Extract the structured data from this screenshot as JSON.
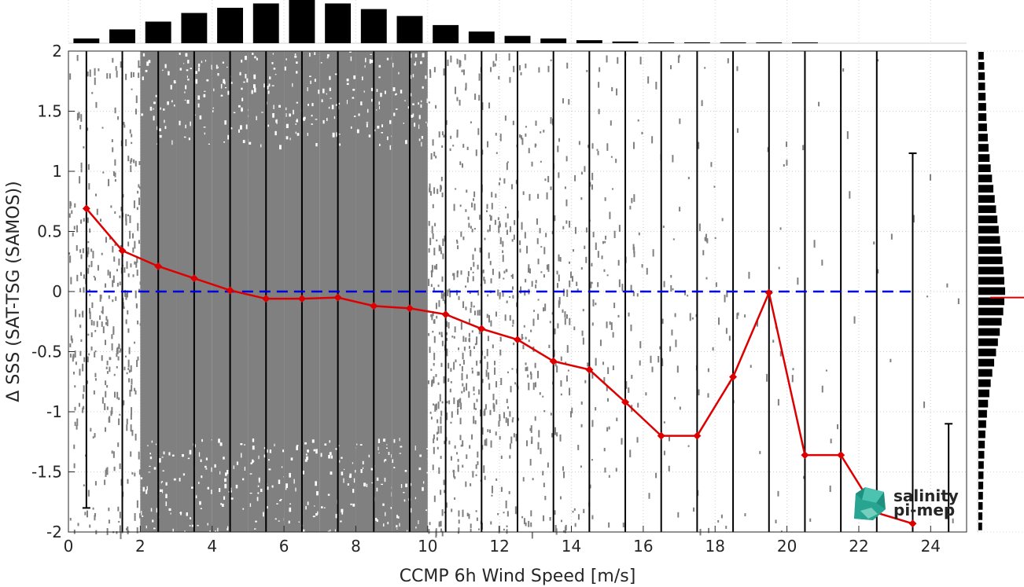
{
  "chart_data": {
    "type": "scatter",
    "xlabel": "CCMP 6h Wind Speed [m/s]",
    "ylabel": "Δ SSS (SAT-TSG (SAMOS))",
    "xlim": [
      0,
      25
    ],
    "ylim": [
      -2,
      2
    ],
    "x_ticks": [
      0,
      2,
      4,
      6,
      8,
      10,
      12,
      14,
      16,
      18,
      20,
      22,
      24
    ],
    "y_ticks": [
      2,
      1.5,
      1,
      0.5,
      0,
      -0.5,
      -1,
      -1.5,
      -2
    ],
    "grid": true,
    "zero_line": {
      "y": 0,
      "color": "#0000dd",
      "style": "dashed"
    },
    "bin_centers": [
      0.5,
      1.5,
      2.5,
      3.5,
      4.5,
      5.5,
      6.5,
      7.5,
      8.5,
      9.5,
      10.5,
      11.5,
      12.5,
      13.5,
      14.5,
      15.5,
      16.5,
      17.5,
      18.5,
      19.5,
      20.5,
      21.5,
      22.5,
      23.5,
      24.5
    ],
    "median_series": {
      "color": "#dd0000",
      "x": [
        0.5,
        1.5,
        2.5,
        3.5,
        4.5,
        5.5,
        6.5,
        7.5,
        8.5,
        9.5,
        10.5,
        11.5,
        12.5,
        13.5,
        14.5,
        15.5,
        16.5,
        17.5,
        18.5,
        19.5,
        20.5,
        21.5,
        22.5,
        23.5
      ],
      "y": [
        0.69,
        0.34,
        0.21,
        0.11,
        0.01,
        -0.06,
        -0.06,
        -0.05,
        -0.12,
        -0.14,
        -0.19,
        -0.31,
        -0.4,
        -0.58,
        -0.65,
        -0.92,
        -1.2,
        -1.2,
        -0.71,
        -0.01,
        -1.36,
        -1.36,
        -1.84,
        -1.93
      ]
    },
    "bin_ranges": [
      {
        "x": 0.5,
        "low": -1.8,
        "high": 2
      },
      {
        "x": 1.5,
        "low": -2,
        "high": 2
      },
      {
        "x": 2.5,
        "low": -2,
        "high": 2
      },
      {
        "x": 3.5,
        "low": -2,
        "high": 2
      },
      {
        "x": 4.5,
        "low": -2,
        "high": 2
      },
      {
        "x": 5.5,
        "low": -2,
        "high": 2
      },
      {
        "x": 6.5,
        "low": -2,
        "high": 2
      },
      {
        "x": 7.5,
        "low": -2,
        "high": 2
      },
      {
        "x": 8.5,
        "low": -2,
        "high": 2
      },
      {
        "x": 9.5,
        "low": -2,
        "high": 2
      },
      {
        "x": 10.5,
        "low": -2,
        "high": 2
      },
      {
        "x": 11.5,
        "low": -2,
        "high": 2
      },
      {
        "x": 12.5,
        "low": -2,
        "high": 2
      },
      {
        "x": 13.5,
        "low": -2,
        "high": 2
      },
      {
        "x": 14.5,
        "low": -2,
        "high": 2
      },
      {
        "x": 15.5,
        "low": -2,
        "high": 2
      },
      {
        "x": 16.5,
        "low": -2,
        "high": 2
      },
      {
        "x": 17.5,
        "low": -2,
        "high": 2
      },
      {
        "x": 18.5,
        "low": -2,
        "high": 2
      },
      {
        "x": 19.5,
        "low": -2,
        "high": 2
      },
      {
        "x": 20.5,
        "low": -2,
        "high": 2
      },
      {
        "x": 21.5,
        "low": -2,
        "high": 2
      },
      {
        "x": 22.5,
        "low": -2,
        "high": 2
      },
      {
        "x": 23.5,
        "low": -2,
        "high": 1.15
      },
      {
        "x": 24.5,
        "low": -2,
        "high": -1.1
      }
    ],
    "x_histogram": {
      "x": [
        0.5,
        1.5,
        2.5,
        3.5,
        4.5,
        5.5,
        6.5,
        7.5,
        8.5,
        9.5,
        10.5,
        11.5,
        12.5,
        13.5,
        14.5,
        15.5,
        16.5,
        17.5,
        18.5,
        19.5,
        20.5
      ],
      "relative_counts": [
        0.11,
        0.32,
        0.5,
        0.7,
        0.82,
        0.92,
        1.0,
        0.92,
        0.79,
        0.63,
        0.42,
        0.27,
        0.17,
        0.11,
        0.07,
        0.04,
        0.02,
        0.02,
        0.01,
        0.01,
        0.005
      ]
    },
    "y_histogram": {
      "relative_counts": [
        0.2,
        0.22,
        0.24,
        0.25,
        0.27,
        0.29,
        0.3,
        0.32,
        0.35,
        0.38,
        0.42,
        0.46,
        0.51,
        0.56,
        0.61,
        0.66,
        0.71,
        0.76,
        0.81,
        0.86,
        0.9,
        0.94,
        0.97,
        1.0,
        0.97,
        0.93,
        0.87,
        0.8,
        0.73,
        0.66,
        0.59,
        0.52,
        0.46,
        0.41,
        0.36,
        0.32,
        0.29,
        0.26,
        0.24,
        0.22,
        0.2,
        0.19,
        0.18,
        0.17,
        0.16,
        0.15,
        0.14
      ],
      "median_marker": -0.05,
      "marker_color": "#dd0000"
    },
    "scatter_density": {
      "x": [
        0.5,
        1.5,
        2.5,
        3.5,
        4.5,
        5.5,
        6.5,
        7.5,
        8.5,
        9.5,
        10.5,
        11.5,
        12.5,
        13.5,
        14.5,
        15.5,
        16.5,
        17.5,
        18.5,
        19.5,
        20.5,
        21.5,
        22.5,
        23.5,
        24.5
      ],
      "relative": [
        0.55,
        0.8,
        0.92,
        0.97,
        1.0,
        1.0,
        1.0,
        1.0,
        0.98,
        0.95,
        0.85,
        0.72,
        0.55,
        0.42,
        0.3,
        0.22,
        0.15,
        0.11,
        0.08,
        0.06,
        0.04,
        0.03,
        0.02,
        0.015,
        0.01
      ],
      "color": "#808080"
    }
  },
  "logo": {
    "line1": "salinity",
    "line2": "pi-mep",
    "color": "#21a899"
  }
}
